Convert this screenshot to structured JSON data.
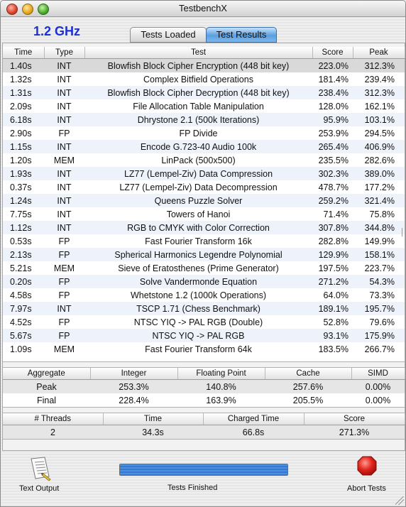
{
  "window": {
    "title": "TestbenchX"
  },
  "clock": "1.2 GHz",
  "tabs": [
    {
      "label": "Tests Loaded",
      "selected": false
    },
    {
      "label": "Test Results",
      "selected": true
    }
  ],
  "results": {
    "columns": [
      "Time",
      "Type",
      "Test",
      "Score",
      "Peak"
    ],
    "rows": [
      {
        "time": "1.40s",
        "type": "INT",
        "test": "Blowfish Block Cipher Encryption (448 bit key)",
        "score": "223.0%",
        "peak": "312.3%"
      },
      {
        "time": "1.32s",
        "type": "INT",
        "test": "Complex Bitfield Operations",
        "score": "181.4%",
        "peak": "239.4%"
      },
      {
        "time": "1.31s",
        "type": "INT",
        "test": "Blowfish Block Cipher Decryption (448 bit key)",
        "score": "238.4%",
        "peak": "312.3%"
      },
      {
        "time": "2.09s",
        "type": "INT",
        "test": "File Allocation Table Manipulation",
        "score": "128.0%",
        "peak": "162.1%"
      },
      {
        "time": "6.18s",
        "type": "INT",
        "test": "Dhrystone 2.1 (500k Iterations)",
        "score": "95.9%",
        "peak": "103.1%"
      },
      {
        "time": "2.90s",
        "type": "FP",
        "test": "FP Divide",
        "score": "253.9%",
        "peak": "294.5%"
      },
      {
        "time": "1.15s",
        "type": "INT",
        "test": "Encode G.723-40 Audio 100k",
        "score": "265.4%",
        "peak": "406.9%"
      },
      {
        "time": "1.20s",
        "type": "MEM",
        "test": "LinPack (500x500)",
        "score": "235.5%",
        "peak": "282.6%"
      },
      {
        "time": "1.93s",
        "type": "INT",
        "test": "LZ77 (Lempel-Ziv) Data Compression",
        "score": "302.3%",
        "peak": "389.0%"
      },
      {
        "time": "0.37s",
        "type": "INT",
        "test": "LZ77 (Lempel-Ziv) Data Decompression",
        "score": "478.7%",
        "peak": "177.2%"
      },
      {
        "time": "1.24s",
        "type": "INT",
        "test": "Queens Puzzle Solver",
        "score": "259.2%",
        "peak": "321.4%"
      },
      {
        "time": "7.75s",
        "type": "INT",
        "test": "Towers of Hanoi",
        "score": "71.4%",
        "peak": "75.8%"
      },
      {
        "time": "1.12s",
        "type": "INT",
        "test": "RGB to CMYK with Color Correction",
        "score": "307.8%",
        "peak": "344.8%"
      },
      {
        "time": "0.53s",
        "type": "FP",
        "test": "Fast Fourier Transform 16k",
        "score": "282.8%",
        "peak": "149.9%"
      },
      {
        "time": "2.13s",
        "type": "FP",
        "test": "Spherical Harmonics Legendre Polynomial",
        "score": "129.9%",
        "peak": "158.1%"
      },
      {
        "time": "5.21s",
        "type": "MEM",
        "test": "Sieve of Eratosthenes (Prime Generator)",
        "score": "197.5%",
        "peak": "223.7%"
      },
      {
        "time": "0.20s",
        "type": "FP",
        "test": "Solve Vandermonde Equation",
        "score": "271.2%",
        "peak": "54.3%"
      },
      {
        "time": "4.58s",
        "type": "FP",
        "test": "Whetstone 1.2 (1000k Operations)",
        "score": "64.0%",
        "peak": "73.3%"
      },
      {
        "time": "7.97s",
        "type": "INT",
        "test": "TSCP 1.71 (Chess Benchmark)",
        "score": "189.1%",
        "peak": "195.7%"
      },
      {
        "time": "4.52s",
        "type": "FP",
        "test": "NTSC YIQ -> PAL RGB (Double)",
        "score": "52.8%",
        "peak": "79.6%"
      },
      {
        "time": "5.67s",
        "type": "FP",
        "test": "NTSC YIQ -> PAL RGB",
        "score": "93.1%",
        "peak": "175.9%"
      },
      {
        "time": "1.09s",
        "type": "MEM",
        "test": "Fast Fourier Transform 64k",
        "score": "183.5%",
        "peak": "266.7%"
      }
    ]
  },
  "aggregate": {
    "columns": [
      "Aggregate",
      "Integer",
      "Floating Point",
      "Cache",
      "SIMD"
    ],
    "rows": [
      [
        "Peak",
        "253.3%",
        "140.8%",
        "257.6%",
        "0.00%"
      ],
      [
        "Final",
        "228.4%",
        "163.9%",
        "205.5%",
        "0.00%"
      ]
    ]
  },
  "threads": {
    "columns": [
      "# Threads",
      "Time",
      "Charged Time",
      "Score"
    ],
    "row": [
      "2",
      "34.3s",
      "66.8s",
      "271.3%"
    ]
  },
  "bottom": {
    "text_output_label": "Text Output",
    "status_label": "Tests Finished",
    "progress_fraction": 1.0,
    "abort_label": "Abort Tests"
  },
  "colors": {
    "accent": "#1d2fd3",
    "stop": "#e0231b",
    "progress": "#3f82d8"
  },
  "icons": {
    "text_output": "document-icon",
    "abort": "stop-icon"
  }
}
